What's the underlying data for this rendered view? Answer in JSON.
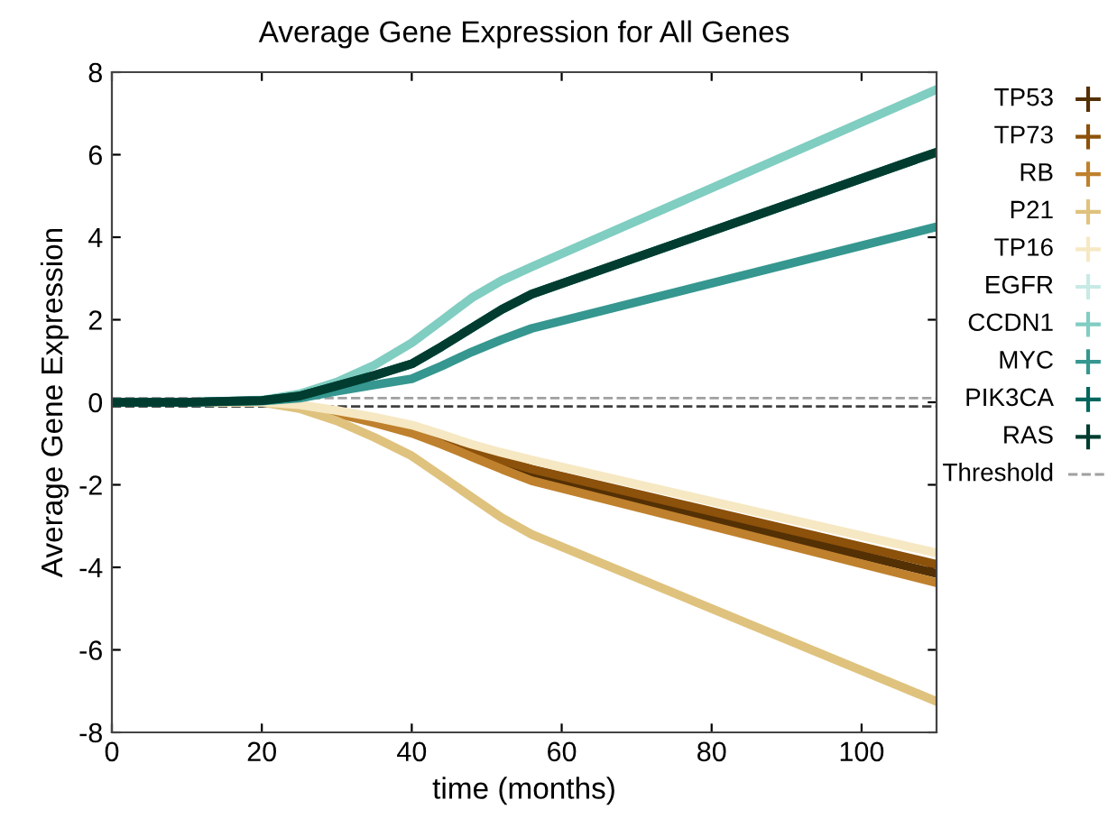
{
  "chart_data": {
    "type": "line",
    "title": "Average Gene Expression for All Genes",
    "xlabel": "time (months)",
    "ylabel": "Average Gene Expression",
    "x": [
      0,
      10,
      20,
      25,
      30,
      35,
      40,
      44,
      48,
      52,
      56,
      110
    ],
    "xlim": [
      0,
      110
    ],
    "xticks": [
      0,
      20,
      40,
      60,
      80,
      100
    ],
    "ylim": [
      -8,
      8
    ],
    "yticks": [
      -8,
      -6,
      -4,
      -2,
      0,
      2,
      4,
      6,
      8
    ],
    "grid": false,
    "legend": "right",
    "line_style": "solid",
    "marker": "none",
    "ref_lines": [
      {
        "axis": "y",
        "value": 0.1,
        "label": "Threshold",
        "color": "#a0a0a0",
        "line_style": "dashed"
      },
      {
        "axis": "y",
        "value": -0.1,
        "color": "#404040",
        "line_style": "dashed"
      }
    ],
    "series": [
      {
        "name": "TP53",
        "color": "#543005",
        "values": [
          0,
          0,
          0,
          -0.08,
          -0.25,
          -0.45,
          -0.68,
          -0.95,
          -1.25,
          -1.52,
          -1.75,
          -4.15
        ]
      },
      {
        "name": "TP73",
        "color": "#8c510a",
        "values": [
          0,
          0,
          0,
          -0.07,
          -0.22,
          -0.4,
          -0.62,
          -0.88,
          -1.15,
          -1.4,
          -1.62,
          -3.93
        ]
      },
      {
        "name": "RB",
        "color": "#bf812d",
        "values": [
          0,
          0,
          0,
          -0.09,
          -0.27,
          -0.5,
          -0.75,
          -1.02,
          -1.32,
          -1.62,
          -1.9,
          -4.37
        ]
      },
      {
        "name": "P21",
        "color": "#dfc27d",
        "values": [
          0,
          0,
          0,
          -0.15,
          -0.45,
          -0.85,
          -1.3,
          -1.8,
          -2.3,
          -2.8,
          -3.2,
          -7.25
        ]
      },
      {
        "name": "TP16",
        "color": "#f6e8c3",
        "values": [
          0,
          0,
          0,
          -0.06,
          -0.2,
          -0.36,
          -0.55,
          -0.78,
          -1.02,
          -1.22,
          -1.4,
          -3.65
        ]
      },
      {
        "name": "EGFR",
        "color": "#c7eae5",
        "values": [
          null,
          null,
          null,
          null,
          null,
          null,
          null,
          null,
          null,
          null,
          null,
          null
        ]
      },
      {
        "name": "CCDN1",
        "color": "#80cdc1",
        "values": [
          0,
          0,
          0.05,
          0.2,
          0.49,
          0.9,
          1.44,
          1.98,
          2.53,
          2.95,
          3.28,
          7.58
        ]
      },
      {
        "name": "MYC",
        "color": "#35978f",
        "values": [
          0,
          0,
          0.03,
          0.1,
          0.27,
          0.42,
          0.57,
          0.88,
          1.22,
          1.52,
          1.79,
          4.25
        ]
      },
      {
        "name": "PIK3CA",
        "color": "#01665e",
        "values": [
          0,
          0,
          0.04,
          0.15,
          0.4,
          0.65,
          0.93,
          1.35,
          1.8,
          2.25,
          2.62,
          6.06
        ]
      },
      {
        "name": "RAS",
        "color": "#003c30",
        "values": [
          0,
          0,
          0.04,
          0.15,
          0.4,
          0.65,
          0.93,
          1.35,
          1.8,
          2.25,
          2.62,
          6.06
        ]
      }
    ]
  }
}
